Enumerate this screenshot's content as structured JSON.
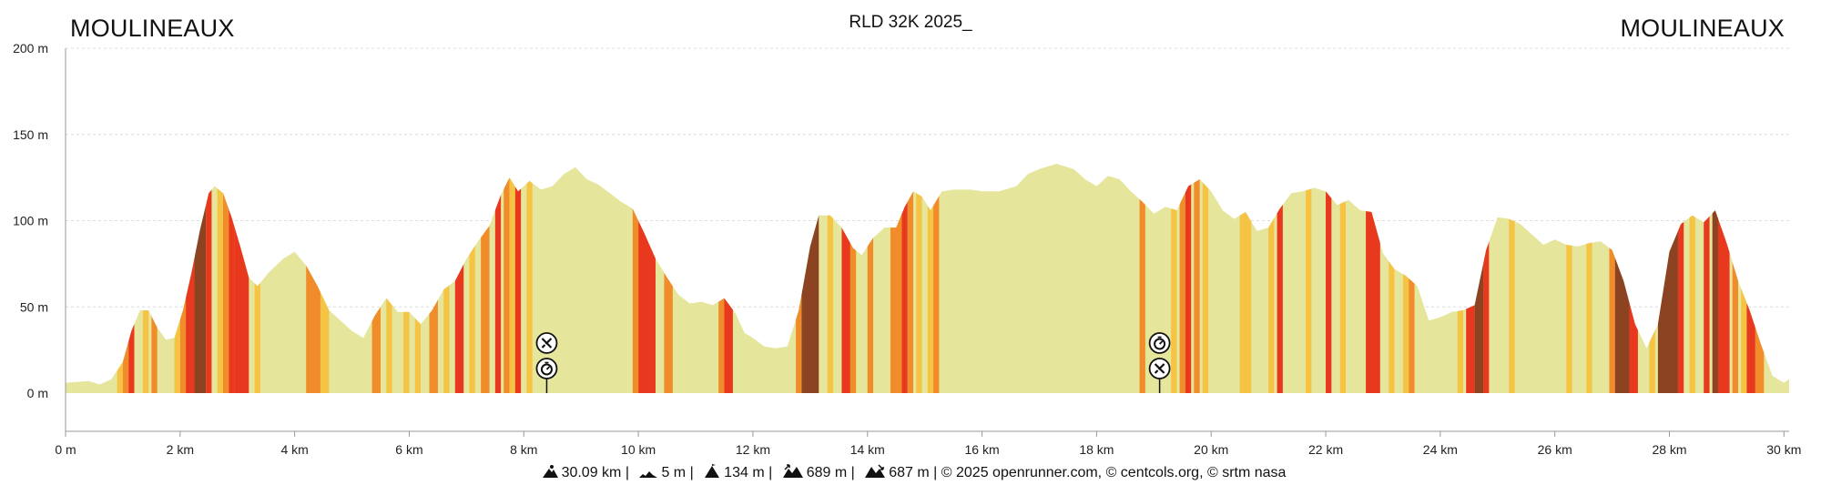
{
  "header": {
    "title": "RLD 32K 2025_",
    "start_label": "MOULINEAUX",
    "end_label": "MOULINEAUX"
  },
  "chart_data": {
    "type": "area",
    "xlabel": "",
    "ylabel": "",
    "x_unit": "km",
    "y_unit": "m",
    "xlim": [
      0,
      30.09
    ],
    "ylim": [
      0,
      200
    ],
    "x_ticks": [
      "0 m",
      "2 km",
      "4 km",
      "6 km",
      "8 km",
      "10 km",
      "12 km",
      "14 km",
      "16 km",
      "18 km",
      "20 km",
      "22 km",
      "24 km",
      "26 km",
      "28 km",
      "30 km"
    ],
    "y_ticks": [
      "0 m",
      "50 m",
      "100 m",
      "150 m",
      "200 m"
    ],
    "grid": true,
    "profile": [
      [
        0.0,
        6
      ],
      [
        0.4,
        7
      ],
      [
        0.6,
        5
      ],
      [
        0.8,
        8
      ],
      [
        1.0,
        18
      ],
      [
        1.15,
        36
      ],
      [
        1.3,
        48
      ],
      [
        1.45,
        48
      ],
      [
        1.6,
        38
      ],
      [
        1.75,
        31
      ],
      [
        1.9,
        32
      ],
      [
        2.05,
        48
      ],
      [
        2.2,
        70
      ],
      [
        2.35,
        95
      ],
      [
        2.5,
        116
      ],
      [
        2.6,
        120
      ],
      [
        2.75,
        116
      ],
      [
        2.9,
        102
      ],
      [
        3.05,
        85
      ],
      [
        3.2,
        67
      ],
      [
        3.35,
        62
      ],
      [
        3.55,
        70
      ],
      [
        3.8,
        78
      ],
      [
        4.0,
        82
      ],
      [
        4.2,
        74
      ],
      [
        4.4,
        62
      ],
      [
        4.6,
        48
      ],
      [
        4.8,
        42
      ],
      [
        5.0,
        36
      ],
      [
        5.2,
        32
      ],
      [
        5.4,
        45
      ],
      [
        5.6,
        55
      ],
      [
        5.8,
        47
      ],
      [
        6.0,
        47
      ],
      [
        6.2,
        40
      ],
      [
        6.4,
        48
      ],
      [
        6.6,
        60
      ],
      [
        6.8,
        65
      ],
      [
        7.0,
        78
      ],
      [
        7.2,
        88
      ],
      [
        7.4,
        97
      ],
      [
        7.6,
        115
      ],
      [
        7.75,
        125
      ],
      [
        7.9,
        117
      ],
      [
        8.1,
        123
      ],
      [
        8.3,
        118
      ],
      [
        8.5,
        120
      ],
      [
        8.7,
        127
      ],
      [
        8.9,
        131
      ],
      [
        9.1,
        124
      ],
      [
        9.3,
        121
      ],
      [
        9.5,
        116
      ],
      [
        9.7,
        111
      ],
      [
        9.9,
        107
      ],
      [
        10.1,
        93
      ],
      [
        10.3,
        78
      ],
      [
        10.5,
        67
      ],
      [
        10.7,
        57
      ],
      [
        10.9,
        52
      ],
      [
        11.1,
        53
      ],
      [
        11.3,
        51
      ],
      [
        11.5,
        55
      ],
      [
        11.7,
        46
      ],
      [
        11.85,
        35
      ],
      [
        12.0,
        32
      ],
      [
        12.2,
        27
      ],
      [
        12.4,
        26
      ],
      [
        12.6,
        27
      ],
      [
        12.8,
        48
      ],
      [
        13.0,
        85
      ],
      [
        13.15,
        103
      ],
      [
        13.35,
        103
      ],
      [
        13.55,
        96
      ],
      [
        13.75,
        84
      ],
      [
        13.9,
        80
      ],
      [
        14.1,
        90
      ],
      [
        14.3,
        96
      ],
      [
        14.5,
        96
      ],
      [
        14.65,
        108
      ],
      [
        14.8,
        117
      ],
      [
        14.95,
        114
      ],
      [
        15.1,
        106
      ],
      [
        15.3,
        117
      ],
      [
        15.5,
        118
      ],
      [
        15.8,
        118
      ],
      [
        16.0,
        117
      ],
      [
        16.3,
        117
      ],
      [
        16.6,
        120
      ],
      [
        16.8,
        127
      ],
      [
        17.0,
        130
      ],
      [
        17.3,
        133
      ],
      [
        17.6,
        130
      ],
      [
        17.8,
        124
      ],
      [
        18.0,
        120
      ],
      [
        18.2,
        126
      ],
      [
        18.4,
        124
      ],
      [
        18.6,
        117
      ],
      [
        18.8,
        111
      ],
      [
        19.0,
        104
      ],
      [
        19.2,
        108
      ],
      [
        19.4,
        106
      ],
      [
        19.6,
        120
      ],
      [
        19.8,
        124
      ],
      [
        20.0,
        117
      ],
      [
        20.2,
        106
      ],
      [
        20.4,
        101
      ],
      [
        20.6,
        105
      ],
      [
        20.8,
        94
      ],
      [
        21.0,
        96
      ],
      [
        21.2,
        107
      ],
      [
        21.4,
        116
      ],
      [
        21.6,
        117
      ],
      [
        21.8,
        119
      ],
      [
        22.0,
        117
      ],
      [
        22.2,
        109
      ],
      [
        22.4,
        112
      ],
      [
        22.6,
        106
      ],
      [
        22.8,
        105
      ],
      [
        23.0,
        81
      ],
      [
        23.2,
        72
      ],
      [
        23.4,
        68
      ],
      [
        23.6,
        62
      ],
      [
        23.8,
        42
      ],
      [
        24.0,
        44
      ],
      [
        24.2,
        47
      ],
      [
        24.4,
        48
      ],
      [
        24.6,
        51
      ],
      [
        24.8,
        83
      ],
      [
        25.0,
        102
      ],
      [
        25.2,
        101
      ],
      [
        25.4,
        98
      ],
      [
        25.6,
        92
      ],
      [
        25.8,
        86
      ],
      [
        26.0,
        89
      ],
      [
        26.2,
        86
      ],
      [
        26.4,
        85
      ],
      [
        26.6,
        87
      ],
      [
        26.8,
        88
      ],
      [
        27.0,
        83
      ],
      [
        27.2,
        65
      ],
      [
        27.4,
        40
      ],
      [
        27.6,
        26
      ],
      [
        27.8,
        40
      ],
      [
        28.0,
        82
      ],
      [
        28.2,
        98
      ],
      [
        28.4,
        103
      ],
      [
        28.6,
        99
      ],
      [
        28.8,
        106
      ],
      [
        29.0,
        87
      ],
      [
        29.2,
        65
      ],
      [
        29.4,
        48
      ],
      [
        29.6,
        28
      ],
      [
        29.8,
        10
      ],
      [
        30.0,
        6
      ],
      [
        30.09,
        8
      ]
    ],
    "slope_colors": {
      "flat": "#e5e69b",
      "moderate": "#f5c444",
      "steep": "#f08c2a",
      "very_steep": "#e8391e",
      "extreme": "#8c4321"
    },
    "slope_segments": [
      [
        0.9,
        1.0,
        "moderate"
      ],
      [
        1.0,
        1.1,
        "steep"
      ],
      [
        1.1,
        1.2,
        "very_steep"
      ],
      [
        1.35,
        1.45,
        "moderate"
      ],
      [
        1.5,
        1.6,
        "steep"
      ],
      [
        1.9,
        2.0,
        "moderate"
      ],
      [
        2.0,
        2.1,
        "steep"
      ],
      [
        2.1,
        2.25,
        "very_steep"
      ],
      [
        2.25,
        2.45,
        "extreme"
      ],
      [
        2.45,
        2.55,
        "very_steep"
      ],
      [
        2.65,
        2.75,
        "moderate"
      ],
      [
        2.75,
        2.85,
        "steep"
      ],
      [
        2.85,
        2.95,
        "very_steep"
      ],
      [
        2.95,
        3.2,
        "very_steep"
      ],
      [
        3.3,
        3.4,
        "moderate"
      ],
      [
        4.2,
        4.45,
        "steep"
      ],
      [
        4.45,
        4.6,
        "moderate"
      ],
      [
        5.35,
        5.5,
        "steep"
      ],
      [
        5.6,
        5.7,
        "moderate"
      ],
      [
        5.9,
        6.0,
        "moderate"
      ],
      [
        6.1,
        6.2,
        "moderate"
      ],
      [
        6.35,
        6.5,
        "steep"
      ],
      [
        6.6,
        6.7,
        "moderate"
      ],
      [
        6.8,
        6.95,
        "very_steep"
      ],
      [
        7.05,
        7.15,
        "moderate"
      ],
      [
        7.25,
        7.4,
        "steep"
      ],
      [
        7.5,
        7.6,
        "very_steep"
      ],
      [
        7.65,
        7.75,
        "steep"
      ],
      [
        7.75,
        7.85,
        "moderate"
      ],
      [
        7.85,
        7.95,
        "very_steep"
      ],
      [
        8.05,
        8.15,
        "moderate"
      ],
      [
        9.9,
        10.0,
        "steep"
      ],
      [
        10.0,
        10.3,
        "very_steep"
      ],
      [
        10.45,
        10.6,
        "steep"
      ],
      [
        11.4,
        11.5,
        "steep"
      ],
      [
        11.5,
        11.65,
        "very_steep"
      ],
      [
        12.75,
        12.85,
        "steep"
      ],
      [
        12.85,
        13.15,
        "extreme"
      ],
      [
        13.3,
        13.4,
        "moderate"
      ],
      [
        13.55,
        13.7,
        "very_steep"
      ],
      [
        13.7,
        13.8,
        "steep"
      ],
      [
        14.0,
        14.1,
        "steep"
      ],
      [
        14.4,
        14.6,
        "steep"
      ],
      [
        14.6,
        14.7,
        "very_steep"
      ],
      [
        14.7,
        14.8,
        "steep"
      ],
      [
        14.85,
        14.95,
        "moderate"
      ],
      [
        15.05,
        15.15,
        "moderate"
      ],
      [
        15.15,
        15.25,
        "steep"
      ],
      [
        18.75,
        18.85,
        "steep"
      ],
      [
        19.3,
        19.4,
        "moderate"
      ],
      [
        19.45,
        19.55,
        "steep"
      ],
      [
        19.55,
        19.65,
        "very_steep"
      ],
      [
        19.7,
        19.8,
        "steep"
      ],
      [
        19.85,
        19.95,
        "moderate"
      ],
      [
        20.5,
        20.7,
        "moderate"
      ],
      [
        21.0,
        21.1,
        "moderate"
      ],
      [
        21.15,
        21.25,
        "very_steep"
      ],
      [
        21.65,
        21.75,
        "moderate"
      ],
      [
        22.0,
        22.1,
        "very_steep"
      ],
      [
        22.25,
        22.35,
        "moderate"
      ],
      [
        22.7,
        22.95,
        "very_steep"
      ],
      [
        23.1,
        23.2,
        "moderate"
      ],
      [
        23.35,
        23.45,
        "moderate"
      ],
      [
        23.45,
        23.55,
        "steep"
      ],
      [
        24.3,
        24.4,
        "moderate"
      ],
      [
        24.45,
        24.6,
        "very_steep"
      ],
      [
        24.6,
        24.75,
        "extreme"
      ],
      [
        24.75,
        24.85,
        "very_steep"
      ],
      [
        25.2,
        25.3,
        "moderate"
      ],
      [
        26.2,
        26.3,
        "moderate"
      ],
      [
        26.55,
        26.65,
        "moderate"
      ],
      [
        26.95,
        27.05,
        "steep"
      ],
      [
        27.05,
        27.3,
        "extreme"
      ],
      [
        27.3,
        27.45,
        "very_steep"
      ],
      [
        27.65,
        27.75,
        "moderate"
      ],
      [
        27.8,
        28.15,
        "extreme"
      ],
      [
        28.15,
        28.25,
        "very_steep"
      ],
      [
        28.35,
        28.45,
        "moderate"
      ],
      [
        28.6,
        28.7,
        "very_steep"
      ],
      [
        28.75,
        28.85,
        "extreme"
      ],
      [
        28.85,
        29.05,
        "very_steep"
      ],
      [
        29.1,
        29.2,
        "steep"
      ],
      [
        29.25,
        29.35,
        "moderate"
      ],
      [
        29.35,
        29.5,
        "very_steep"
      ],
      [
        29.5,
        29.65,
        "steep"
      ]
    ],
    "markers": [
      {
        "km": 8.4,
        "icons": [
          "aid-station-icon",
          "timing-icon"
        ]
      },
      {
        "km": 19.1,
        "icons": [
          "timing-icon",
          "aid-station-icon"
        ]
      }
    ]
  },
  "footer": {
    "distance": "30.09 km",
    "min_elevation": "5 m",
    "max_elevation": "134 m",
    "ascent": "689 m",
    "descent": "687 m",
    "credits": "© 2025 openrunner.com, © centcols.org, © srtm nasa",
    "separator": "|"
  }
}
